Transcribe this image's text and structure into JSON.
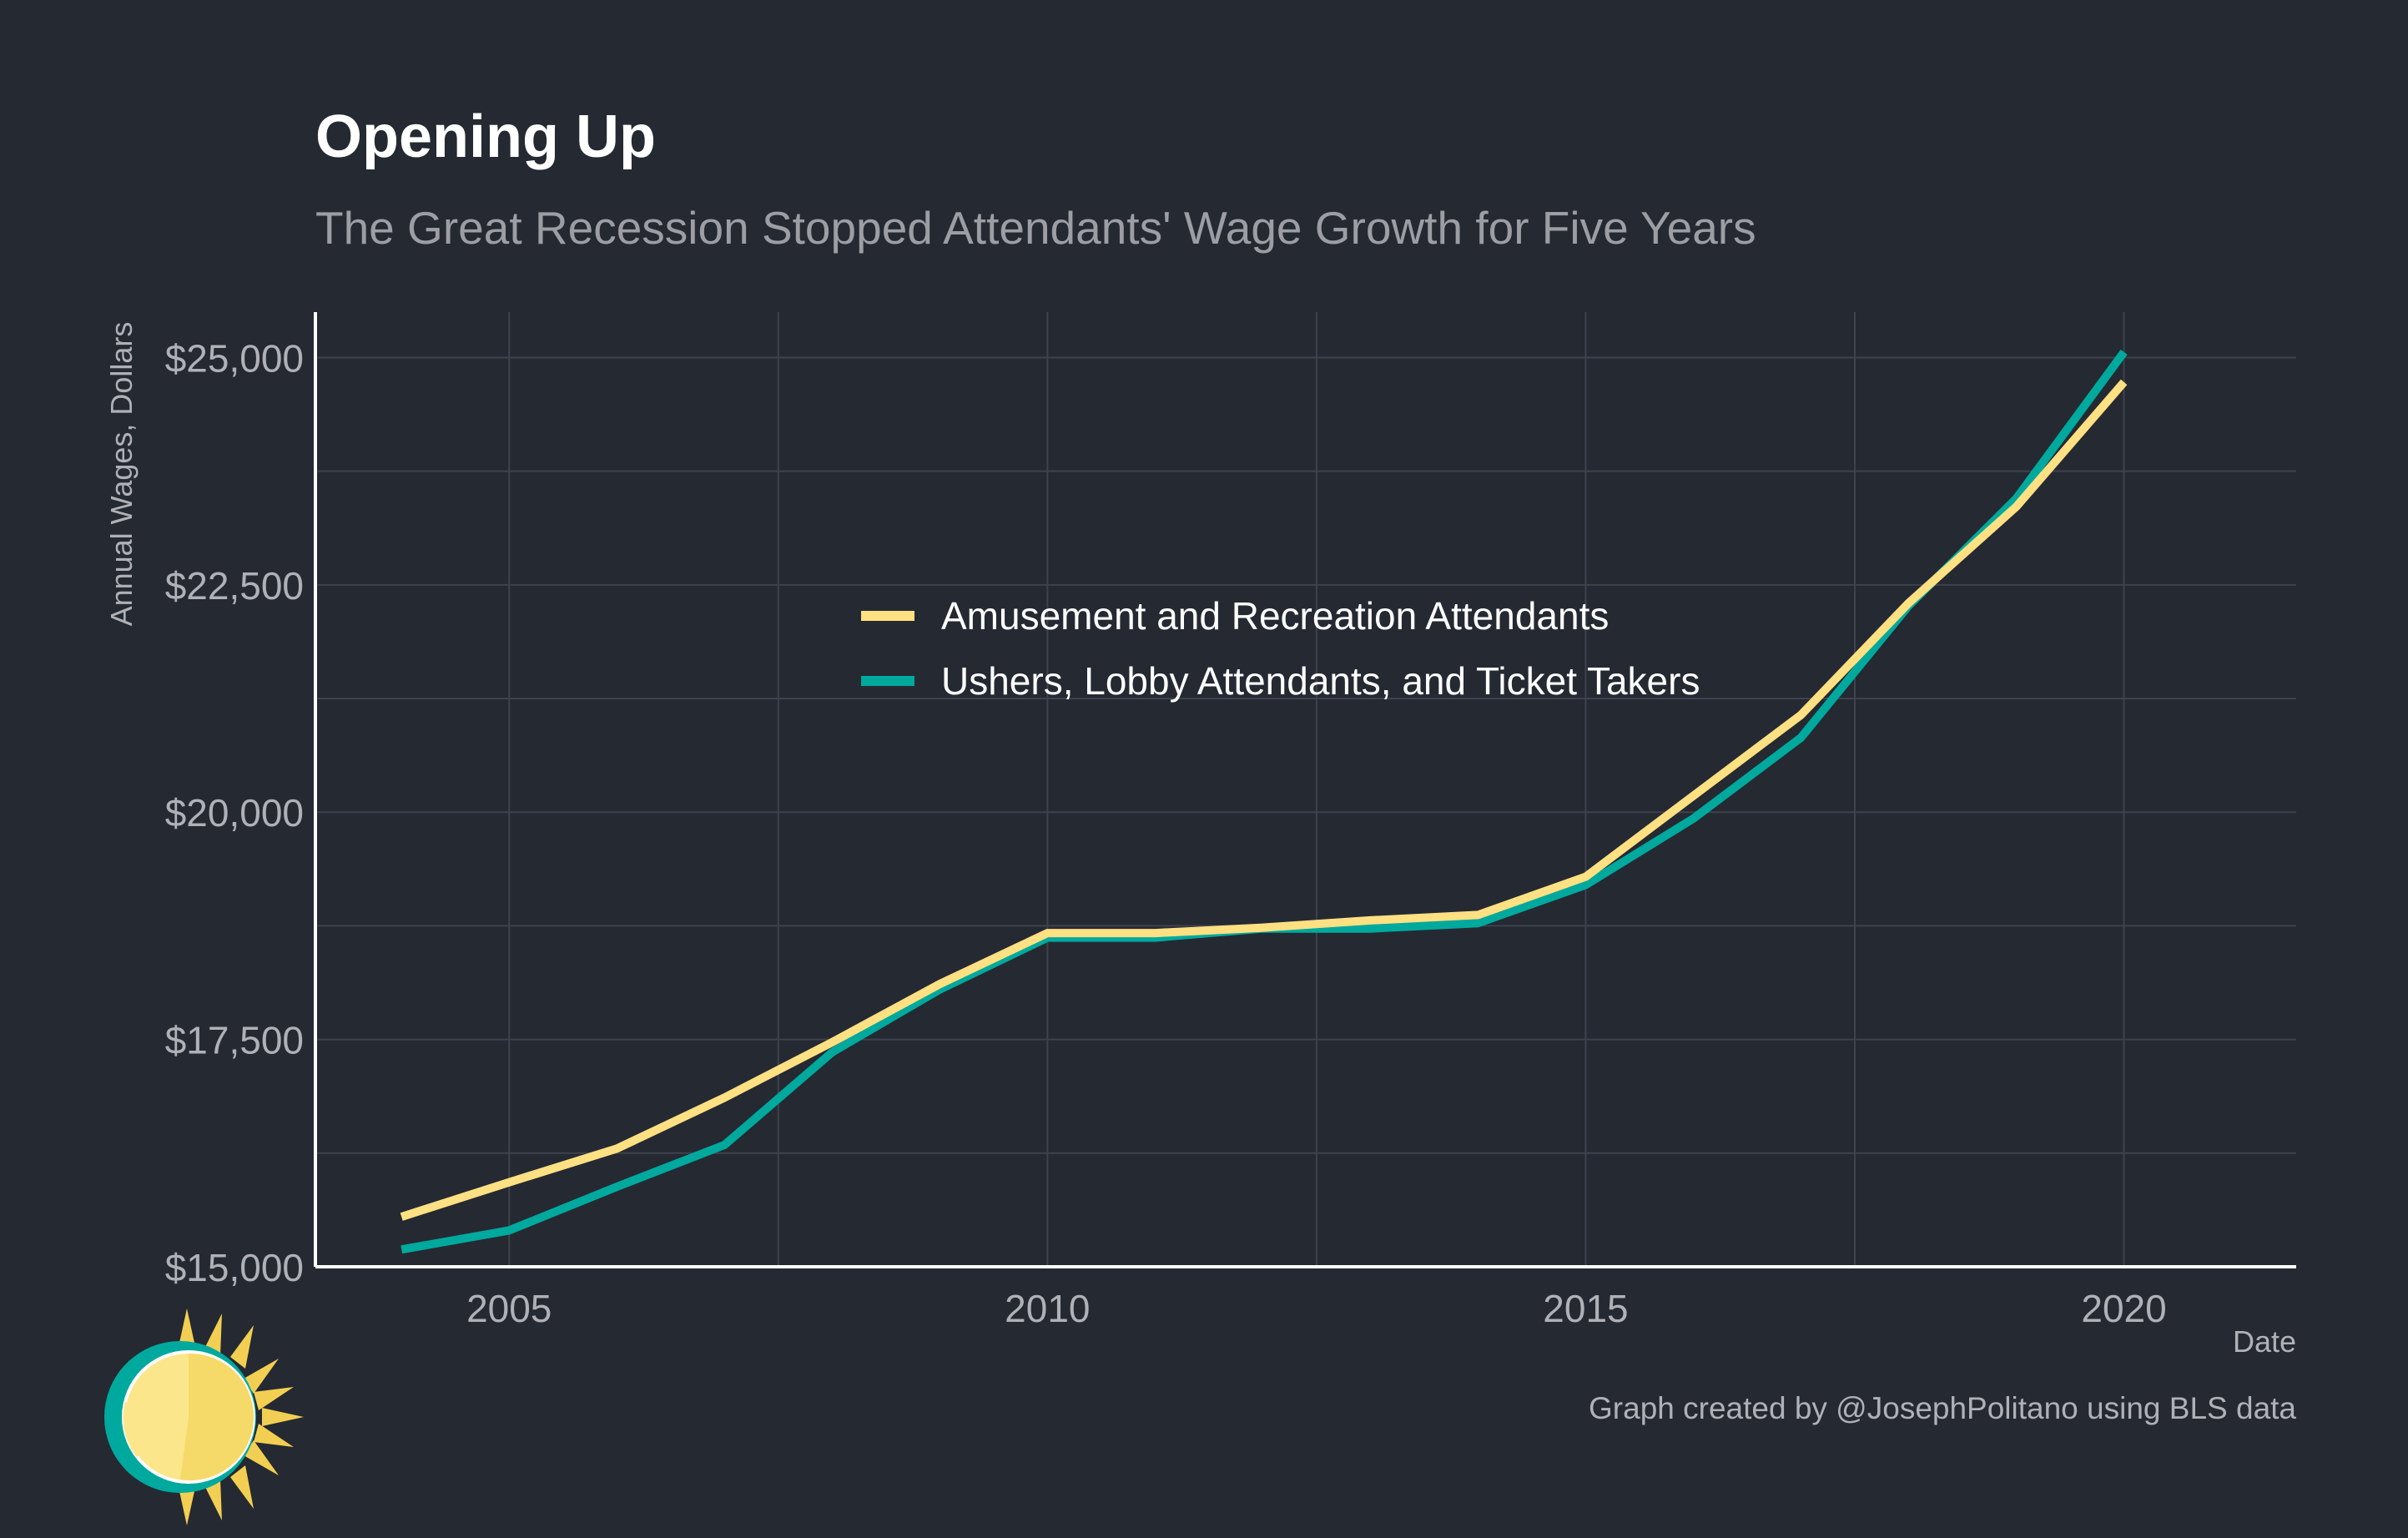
{
  "chart_data": {
    "type": "line",
    "title": "Opening Up",
    "subtitle": "The Great Recession Stopped Attendants' Wage Growth for Five Years",
    "xlabel": "Date",
    "ylabel": "Annual Wages, Dollars",
    "caption": "Graph created by @JosephPolitano using BLS data",
    "xlim": [
      2003.2,
      2021.6
    ],
    "ylim": [
      15000,
      25500
    ],
    "x_ticks": [
      2005,
      2010,
      2015,
      2020
    ],
    "x_tick_labels": [
      "2005",
      "2010",
      "2015",
      "2020"
    ],
    "x_minor_ticks": [
      2007.5,
      2012.5,
      2017.5
    ],
    "y_ticks": [
      15000,
      17500,
      20000,
      22500,
      25000
    ],
    "y_tick_labels": [
      "$15,000",
      "$17,500",
      "$20,000",
      "$22,500",
      "$25,000"
    ],
    "y_minor_ticks": [
      16250,
      18750,
      21250,
      23750
    ],
    "grid": true,
    "legend_position": "center-left inside plot",
    "x": [
      2004,
      2005,
      2006,
      2007,
      2008,
      2009,
      2010,
      2011,
      2012,
      2013,
      2014,
      2015,
      2016,
      2017,
      2018,
      2019,
      2020
    ],
    "series": [
      {
        "name": "Amusement and Recreation Attendants",
        "color": "#FFE082",
        "values": [
          15550,
          15930,
          16300,
          16860,
          17470,
          18110,
          18670,
          18670,
          18730,
          18810,
          18870,
          19290,
          20180,
          21070,
          22300,
          23360,
          24730
        ]
      },
      {
        "name": "Ushers, Lobby Attendants, and Ticket Takers",
        "color": "#00A99D",
        "values": [
          15190,
          15400,
          15880,
          16340,
          17360,
          18050,
          18620,
          18620,
          18720,
          18720,
          18780,
          19200,
          19930,
          20820,
          22270,
          23450,
          25060
        ]
      }
    ]
  },
  "colors": {
    "background": "#252932",
    "grid": "#3E424C",
    "axis_line": "#FFFFFF",
    "tick_text": "#AFB1B7",
    "title_text": "#FFFFFF",
    "subtitle_text": "#9C9EA4"
  },
  "logo": {
    "icon": "sun-logo-icon"
  }
}
